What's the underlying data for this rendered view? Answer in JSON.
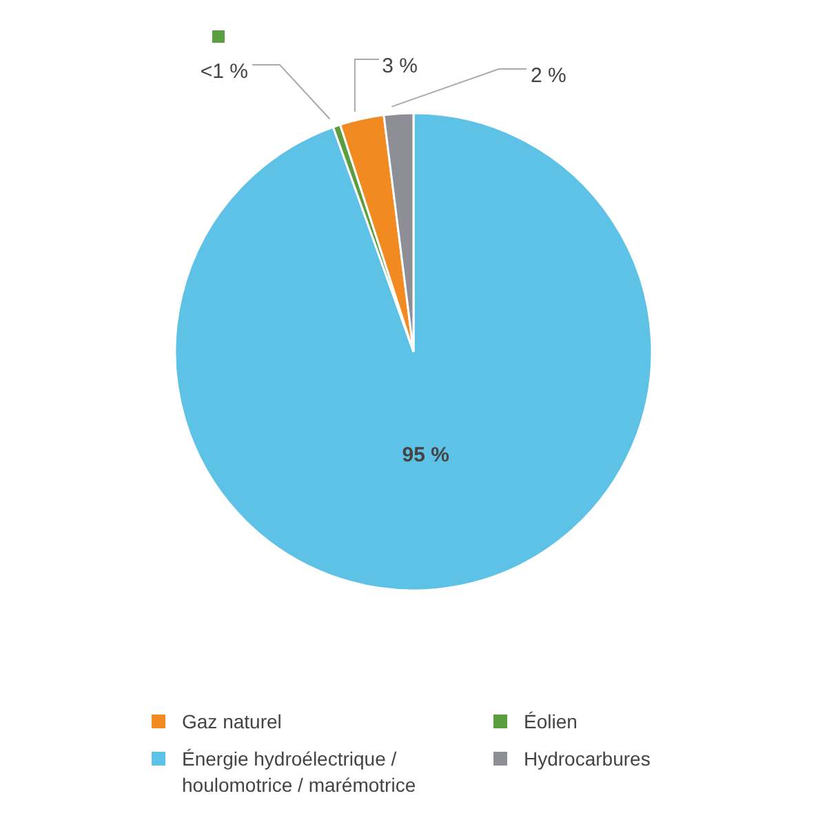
{
  "chart_data": {
    "type": "pie",
    "categories": [
      "Énergie hydroélectrique / houlomotrice / marémotrice",
      "Éolien",
      "Gaz naturel",
      "Hydrocarbures"
    ],
    "values": [
      95,
      0.5,
      3,
      2
    ],
    "colors": [
      "#5ec1e6",
      "#5a9e3f",
      "#f28a22",
      "#8e8e96"
    ],
    "value_labels": [
      "95 %",
      "<1 %",
      "3 %",
      "2 %"
    ],
    "legend": "bottom"
  }
}
